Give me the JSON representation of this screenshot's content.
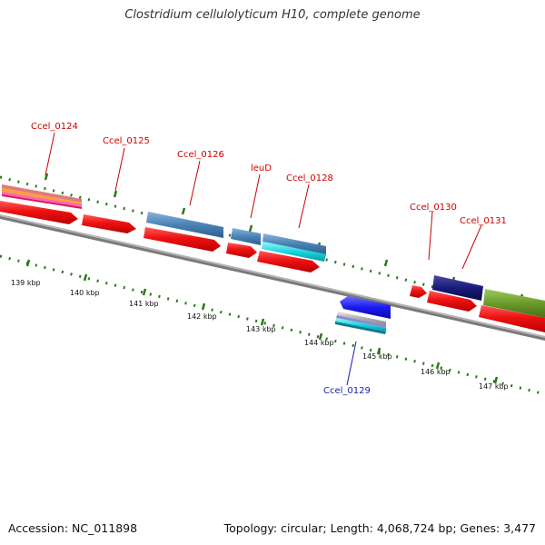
{
  "title": "Clostridium cellulolyticum H10, complete genome",
  "footer": {
    "accession": "Accession: NC_011898",
    "summary": "Topology: circular; Length: 4,068,724 bp; Genes: 3,477"
  },
  "colors": {
    "forward_gene": "#ee1111",
    "steelblue_feature": "#4a82b5",
    "cyan_feature": "#18d8e0",
    "navy_feature": "#1a1a7a",
    "olive_feature": "#6b9a2a",
    "reverse_gene": "#1a1aee",
    "ticks": "#2a7a1a",
    "label_forward": "#cc0000",
    "label_reverse": "#1a1ab0"
  },
  "kbp_labels": [
    "139 kbp",
    "140 kbp",
    "141 kbp",
    "142 kbp",
    "143 kbp",
    "144 kbp",
    "145 kbp",
    "146 kbp",
    "147 kbp"
  ],
  "gene_labels": {
    "ccel_0124": "Ccel_0124",
    "ccel_0125": "Ccel_0125",
    "ccel_0126": "Ccel_0126",
    "leuD": "leuD",
    "ccel_0128": "Ccel_0128",
    "ccel_0129": "Ccel_0129",
    "ccel_0130": "Ccel_0130",
    "ccel_0131": "Ccel_0131"
  }
}
